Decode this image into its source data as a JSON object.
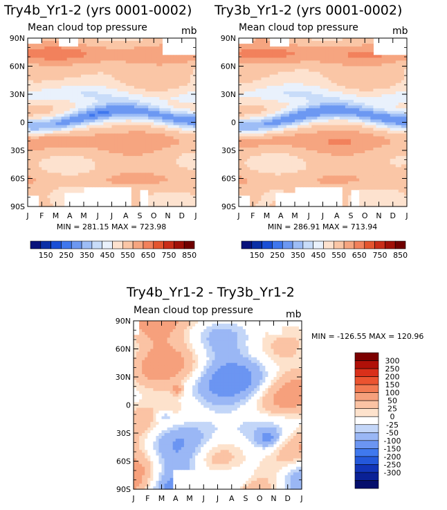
{
  "colors": {
    "frame": "#000000",
    "abs_palette": [
      "#08127a",
      "#0a2fa6",
      "#1a4fd6",
      "#3f77ee",
      "#6c98f2",
      "#9dbdf6",
      "#c8dcf9",
      "#e9f1fc",
      "#fde2cf",
      "#fac6a6",
      "#f6a580",
      "#f2815c",
      "#e4552f",
      "#c92d18",
      "#a01008",
      "#700000"
    ],
    "diff_palette": [
      "#050f6c",
      "#0a2196",
      "#1235b8",
      "#2458da",
      "#3f78ee",
      "#6b95f2",
      "#9ab7f5",
      "#c3d6f8",
      "#ffffff",
      "#fde2cc",
      "#fbc3a4",
      "#f6a07c",
      "#f27a52",
      "#eb5430",
      "#d9301a",
      "#b01008",
      "#7c0000"
    ]
  },
  "chart_data": [
    {
      "type": "heatmap",
      "panel": "top-left",
      "title": "Try4b_Yr1-2 (yrs 0001-0002)",
      "subtitle": "Mean cloud top pressure",
      "units": "mb",
      "x_ticks": [
        "J",
        "F",
        "M",
        "A",
        "M",
        "J",
        "J",
        "A",
        "S",
        "O",
        "N",
        "D",
        "J"
      ],
      "y_ticks": [
        "90N",
        "60N",
        "30N",
        "0",
        "30S",
        "60S",
        "90S"
      ],
      "xlabel": "",
      "ylabel": "",
      "stats": "MIN = 281.15  MAX = 723.98",
      "min": 281.15,
      "max": 723.98
    },
    {
      "type": "heatmap",
      "panel": "top-right",
      "title": "Try3b_Yr1-2 (yrs 0001-0002)",
      "subtitle": "Mean cloud top pressure",
      "units": "mb",
      "x_ticks": [
        "J",
        "F",
        "M",
        "A",
        "M",
        "J",
        "J",
        "A",
        "S",
        "O",
        "N",
        "D",
        "J"
      ],
      "y_ticks": [
        "90N",
        "60N",
        "30N",
        "0",
        "30S",
        "60S",
        "90S"
      ],
      "xlabel": "",
      "ylabel": "",
      "stats": "MIN = 286.91  MAX = 713.94",
      "min": 286.91,
      "max": 713.94
    },
    {
      "type": "heatmap",
      "panel": "bottom-center",
      "title": "Try4b_Yr1-2 - Try3b_Yr1-2",
      "subtitle": "Mean cloud top pressure",
      "units": "mb",
      "x_ticks": [
        "J",
        "F",
        "M",
        "A",
        "M",
        "J",
        "J",
        "A",
        "S",
        "O",
        "N",
        "D",
        "J"
      ],
      "y_ticks": [
        "90N",
        "60N",
        "30N",
        "0",
        "30S",
        "60S",
        "90S"
      ],
      "xlabel": "",
      "ylabel": "",
      "stats": "MIN = -126.55  MAX = 120.96",
      "min": -126.55,
      "max": 120.96
    }
  ],
  "colorbar_abs": {
    "labels": [
      "150",
      "250",
      "350",
      "450",
      "550",
      "650",
      "750",
      "850"
    ]
  },
  "colorbar_diff": {
    "labels": [
      "300",
      "250",
      "200",
      "150",
      "100",
      "50",
      "25",
      "0",
      "-25",
      "-50",
      "-100",
      "-150",
      "-200",
      "-250",
      "-300"
    ]
  }
}
